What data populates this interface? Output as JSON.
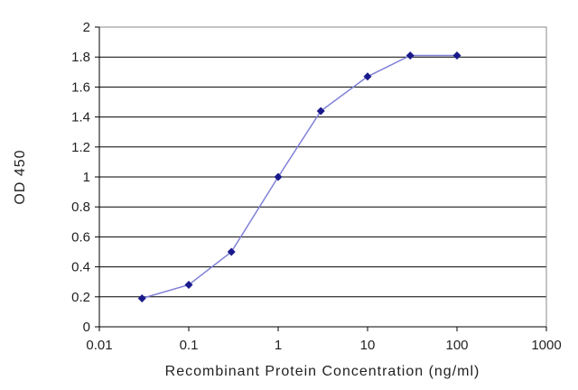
{
  "chart_data": {
    "type": "line",
    "title": "",
    "xlabel": "Recombinant Protein Concentration (ng/ml)",
    "ylabel": "OD 450",
    "x_scale": "log",
    "xlim": [
      0.01,
      1000
    ],
    "ylim": [
      0,
      2
    ],
    "x_ticks": [
      0.01,
      0.1,
      1,
      10,
      100,
      1000
    ],
    "x_tick_labels": [
      "0.01",
      "0.1",
      "1",
      "10",
      "100",
      "1000"
    ],
    "y_ticks": [
      0,
      0.2,
      0.4,
      0.6,
      0.8,
      1,
      1.2,
      1.4,
      1.6,
      1.8,
      2
    ],
    "y_tick_labels": [
      "0",
      "0.2",
      "0.4",
      "0.6",
      "0.8",
      "1",
      "1.2",
      "1.4",
      "1.6",
      "1.8",
      "2"
    ],
    "grid": "horizontal",
    "legend": "none",
    "series": [
      {
        "x": [
          0.03,
          0.1,
          0.3,
          1,
          3,
          10,
          30,
          100
        ],
        "y": [
          0.19,
          0.28,
          0.5,
          1.0,
          1.44,
          1.67,
          1.81,
          1.81
        ]
      }
    ],
    "colors": {
      "line": "#8080d8",
      "marker": "#1a1a8c",
      "grid": "#000000",
      "plot_border": "#888888",
      "axis": "#000000"
    }
  }
}
